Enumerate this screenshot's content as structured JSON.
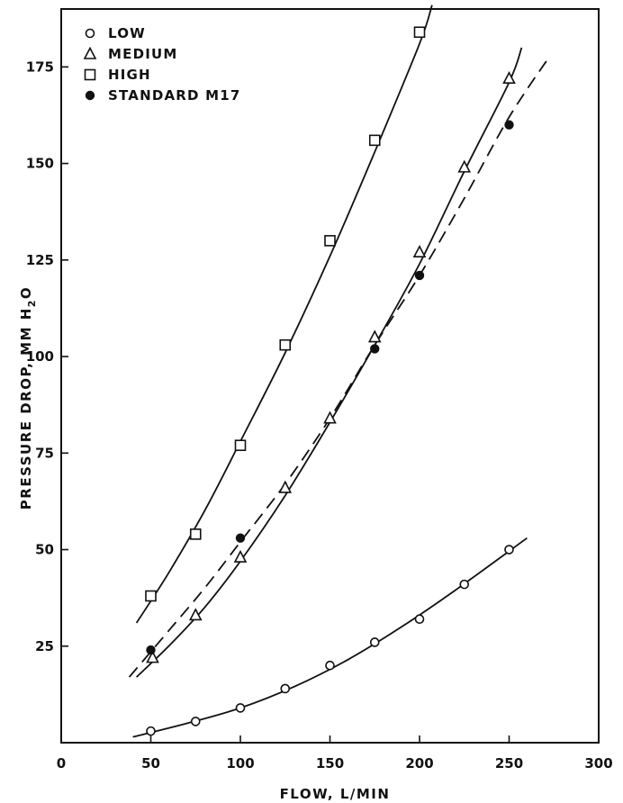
{
  "chart_data": {
    "type": "scatter",
    "title": "",
    "xlabel": "FLOW, L/MIN",
    "ylabel_parts": {
      "main": "PRESSURE DROP, MM H",
      "sub": "2",
      "tail": "O"
    },
    "xlim": [
      0,
      300
    ],
    "ylim": [
      0,
      190
    ],
    "xticks": [
      0,
      50,
      100,
      150,
      200,
      250,
      300
    ],
    "yticks": [
      25,
      50,
      75,
      100,
      125,
      150,
      175
    ],
    "xtick_labels": [
      "0",
      "50",
      "100",
      "150",
      "200",
      "250",
      "300"
    ],
    "ytick_labels": [
      "25",
      "50",
      "75",
      "100",
      "125",
      "150",
      "175"
    ],
    "grid": false,
    "legend_placement": "top-left",
    "series": [
      {
        "name": "LOW",
        "marker": "circle-open",
        "x": [
          50,
          75,
          100,
          125,
          150,
          175,
          200,
          225,
          250
        ],
        "y": [
          3,
          5.5,
          9,
          14,
          20,
          26,
          32,
          41,
          50
        ],
        "fit": [
          [
            40,
            1.5
          ],
          [
            70,
            5
          ],
          [
            100,
            9
          ],
          [
            130,
            14.5
          ],
          [
            160,
            21.5
          ],
          [
            190,
            30
          ],
          [
            220,
            39.5
          ],
          [
            260,
            53
          ]
        ],
        "fit_style": "solid"
      },
      {
        "name": "MEDIUM",
        "marker": "triangle-open",
        "x": [
          51,
          75,
          100,
          125,
          150,
          175,
          200,
          225,
          250
        ],
        "y": [
          22,
          33,
          48,
          66,
          84,
          105,
          127,
          149,
          172
        ],
        "fit": [
          [
            42,
            17
          ],
          [
            60,
            25
          ],
          [
            80,
            35
          ],
          [
            100,
            47
          ],
          [
            125,
            64
          ],
          [
            150,
            83
          ],
          [
            175,
            103
          ],
          [
            200,
            124
          ],
          [
            225,
            148
          ],
          [
            250,
            171
          ],
          [
            257,
            180
          ]
        ],
        "fit_style": "solid"
      },
      {
        "name": "HIGH",
        "marker": "square-open",
        "x": [
          50,
          75,
          100,
          125,
          150,
          175,
          200
        ],
        "y": [
          38,
          54,
          77,
          103,
          130,
          156,
          184
        ],
        "fit": [
          [
            42,
            31
          ],
          [
            60,
            44
          ],
          [
            80,
            60
          ],
          [
            100,
            78
          ],
          [
            125,
            101
          ],
          [
            150,
            126
          ],
          [
            175,
            153
          ],
          [
            200,
            181
          ],
          [
            207,
            191
          ]
        ],
        "fit_style": "solid"
      },
      {
        "name": "STANDARD M17",
        "marker": "circle-filled",
        "x": [
          50,
          100,
          175,
          200,
          250
        ],
        "y": [
          24,
          53,
          102,
          121,
          160
        ],
        "fit": [
          [
            38,
            17
          ],
          [
            60,
            29
          ],
          [
            80,
            40
          ],
          [
            100,
            52
          ],
          [
            125,
            67
          ],
          [
            150,
            84
          ],
          [
            175,
            103
          ],
          [
            200,
            121
          ],
          [
            225,
            141
          ],
          [
            250,
            162
          ],
          [
            273,
            178
          ]
        ],
        "fit_style": "dashed"
      }
    ]
  }
}
